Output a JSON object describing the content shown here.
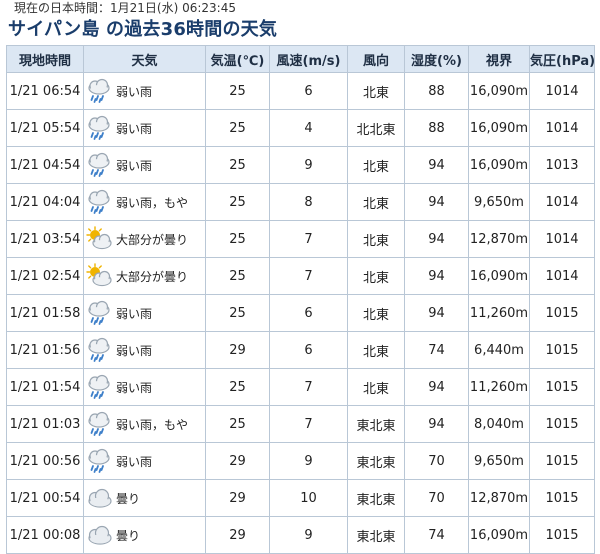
{
  "header": {
    "clock_text": "現在の日本時間：1月21日(水) 06:23:45",
    "title": "サイパン島 の過去36時間の天気"
  },
  "table": {
    "columns": [
      "現地時間",
      "天気",
      "気温(℃)",
      "風速(m/s)",
      "風向",
      "湿度(%)",
      "視界",
      "気圧(hPa)"
    ],
    "rows": [
      {
        "time": "1/21 06:54",
        "icon": "rain-icon",
        "weather": "弱い雨",
        "temp": "25",
        "wind_speed": "6",
        "wind_dir": "北東",
        "humidity": "88",
        "visibility": "16,090m",
        "pressure": "1014"
      },
      {
        "time": "1/21 05:54",
        "icon": "rain-icon",
        "weather": "弱い雨",
        "temp": "25",
        "wind_speed": "4",
        "wind_dir": "北北東",
        "humidity": "88",
        "visibility": "16,090m",
        "pressure": "1014"
      },
      {
        "time": "1/21 04:54",
        "icon": "rain-icon",
        "weather": "弱い雨",
        "temp": "25",
        "wind_speed": "9",
        "wind_dir": "北東",
        "humidity": "94",
        "visibility": "16,090m",
        "pressure": "1013"
      },
      {
        "time": "1/21 04:04",
        "icon": "rain-icon",
        "weather": "弱い雨，もや",
        "temp": "25",
        "wind_speed": "8",
        "wind_dir": "北東",
        "humidity": "94",
        "visibility": "9,650m",
        "pressure": "1014"
      },
      {
        "time": "1/21 03:54",
        "icon": "partly-cloudy-icon",
        "weather": "大部分が曇り",
        "temp": "25",
        "wind_speed": "7",
        "wind_dir": "北東",
        "humidity": "94",
        "visibility": "12,870m",
        "pressure": "1014"
      },
      {
        "time": "1/21 02:54",
        "icon": "partly-cloudy-icon",
        "weather": "大部分が曇り",
        "temp": "25",
        "wind_speed": "7",
        "wind_dir": "北東",
        "humidity": "94",
        "visibility": "16,090m",
        "pressure": "1014"
      },
      {
        "time": "1/21 01:58",
        "icon": "rain-icon",
        "weather": "弱い雨",
        "temp": "25",
        "wind_speed": "6",
        "wind_dir": "北東",
        "humidity": "94",
        "visibility": "11,260m",
        "pressure": "1015"
      },
      {
        "time": "1/21 01:56",
        "icon": "rain-icon",
        "weather": "弱い雨",
        "temp": "29",
        "wind_speed": "6",
        "wind_dir": "北東",
        "humidity": "74",
        "visibility": "6,440m",
        "pressure": "1015"
      },
      {
        "time": "1/21 01:54",
        "icon": "rain-icon",
        "weather": "弱い雨",
        "temp": "25",
        "wind_speed": "7",
        "wind_dir": "北東",
        "humidity": "94",
        "visibility": "11,260m",
        "pressure": "1015"
      },
      {
        "time": "1/21 01:03",
        "icon": "rain-icon",
        "weather": "弱い雨，もや",
        "temp": "25",
        "wind_speed": "7",
        "wind_dir": "東北東",
        "humidity": "94",
        "visibility": "8,040m",
        "pressure": "1015"
      },
      {
        "time": "1/21 00:56",
        "icon": "rain-icon",
        "weather": "弱い雨",
        "temp": "29",
        "wind_speed": "9",
        "wind_dir": "東北東",
        "humidity": "70",
        "visibility": "9,650m",
        "pressure": "1015"
      },
      {
        "time": "1/21 00:54",
        "icon": "cloudy-icon",
        "weather": "曇り",
        "temp": "29",
        "wind_speed": "10",
        "wind_dir": "東北東",
        "humidity": "70",
        "visibility": "12,870m",
        "pressure": "1015"
      },
      {
        "time": "1/21 00:08",
        "icon": "cloudy-icon",
        "weather": "曇り",
        "temp": "29",
        "wind_speed": "9",
        "wind_dir": "東北東",
        "humidity": "74",
        "visibility": "16,090m",
        "pressure": "1015"
      }
    ]
  },
  "colors": {
    "title": "#1a3d6b",
    "header_bg": "#dce7f3",
    "border": "#b9c7d6",
    "cloud": "#9aa6b2",
    "rain": "#3d7fc9",
    "sun": "#f0b400"
  }
}
